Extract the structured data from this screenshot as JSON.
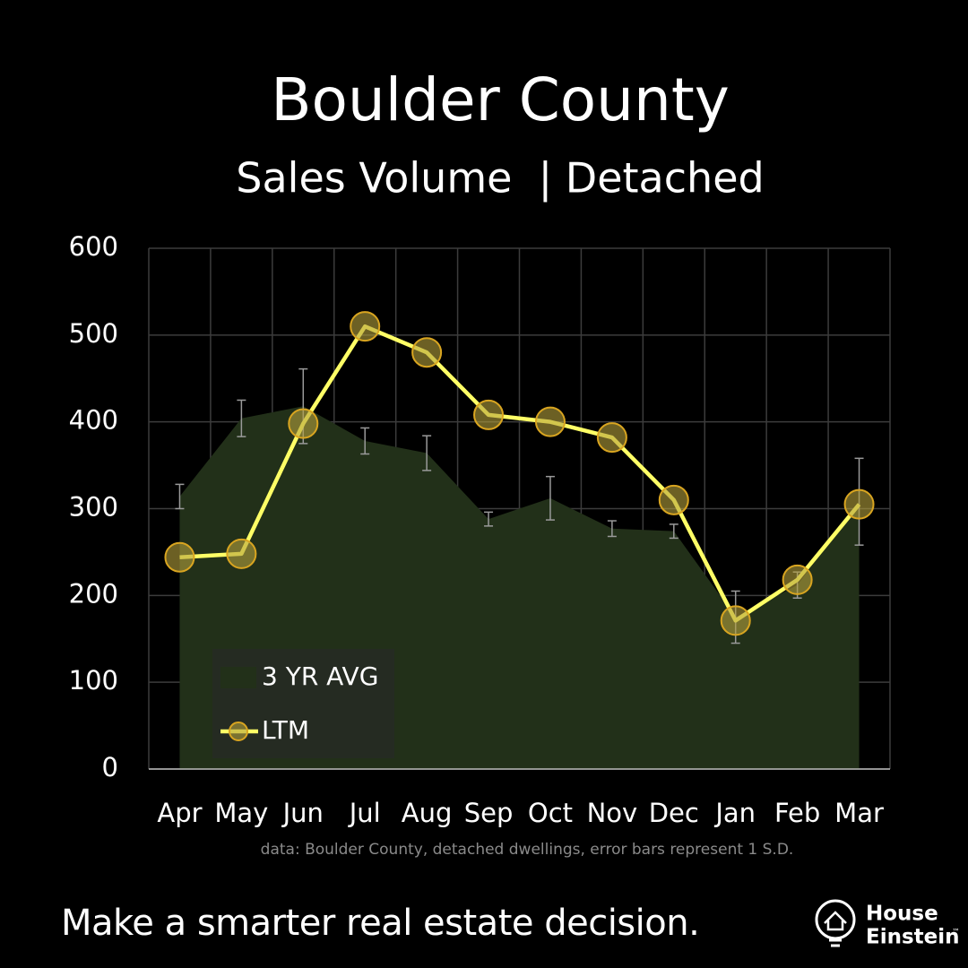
{
  "chart_data": {
    "type": "area-line",
    "title": "Boulder County",
    "subtitle": "Sales Volume  | Detached",
    "source": "data: Boulder County, detached dwellings, error bars represent 1 S.D.",
    "categories": [
      "Apr",
      "May",
      "Jun",
      "Jul",
      "Aug",
      "Sep",
      "Oct",
      "Nov",
      "Dec",
      "Jan",
      "Feb",
      "Mar"
    ],
    "series": [
      {
        "name": "3 YR AVG",
        "type": "area",
        "color": "#223019",
        "values": [
          314,
          404,
          418,
          378,
          364,
          288,
          312,
          277,
          274,
          175,
          212,
          308
        ],
        "errors": [
          14,
          21,
          43,
          15,
          20,
          8,
          25,
          9,
          8,
          30,
          15,
          50
        ]
      },
      {
        "name": "LTM",
        "type": "line",
        "color": "#ffff66",
        "values": [
          244,
          248,
          398,
          510,
          480,
          408,
          400,
          382,
          310,
          171,
          218,
          305
        ]
      }
    ],
    "ylim": [
      0,
      600
    ],
    "yticks": [
      0,
      100,
      200,
      300,
      400,
      500,
      600
    ],
    "grid": true,
    "legend": "lower left"
  },
  "footer": {
    "tagline": "Make a smarter real estate decision.",
    "brand_line1": "House",
    "brand_line2": "Einstein",
    "trademark": "™"
  }
}
